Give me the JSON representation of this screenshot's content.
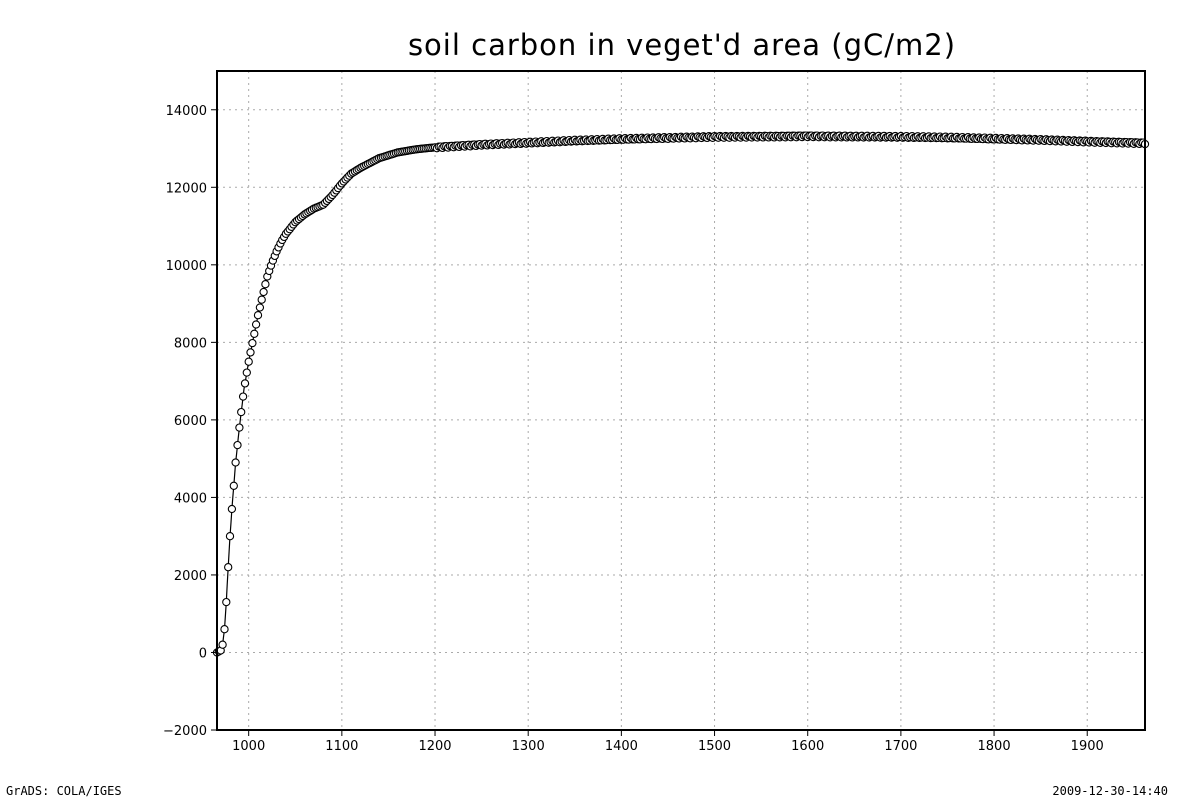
{
  "footer": {
    "left": "GrADS: COLA/IGES",
    "right": "2009-12-30-14:40"
  },
  "chart_data": {
    "type": "line",
    "title": "soil carbon in veget'd area (gC/m2)",
    "xlabel": "",
    "ylabel": "",
    "xlim": [
      966,
      1962
    ],
    "ylim": [
      -2000,
      15000
    ],
    "xticks": [
      1000,
      1100,
      1200,
      1300,
      1400,
      1500,
      1600,
      1700,
      1800,
      1900
    ],
    "yticks": [
      -2000,
      0,
      2000,
      4000,
      6000,
      8000,
      10000,
      12000,
      14000
    ],
    "grid": true,
    "marker": "open-circle",
    "series_anchors": {
      "x": [
        966,
        970,
        972,
        974,
        976,
        978,
        980,
        982,
        984,
        986,
        990,
        995,
        1000,
        1005,
        1010,
        1015,
        1020,
        1025,
        1030,
        1035,
        1040,
        1050,
        1060,
        1070,
        1080,
        1090,
        1100,
        1110,
        1120,
        1140,
        1160,
        1180,
        1200,
        1250,
        1300,
        1350,
        1400,
        1450,
        1500,
        1550,
        1600,
        1650,
        1700,
        1750,
        1800,
        1850,
        1900,
        1962
      ],
      "values": [
        0,
        50,
        200,
        600,
        1300,
        2200,
        3000,
        3700,
        4300,
        4900,
        5800,
        6800,
        7500,
        8100,
        8700,
        9200,
        9700,
        10050,
        10350,
        10600,
        10800,
        11100,
        11300,
        11450,
        11550,
        11800,
        12100,
        12350,
        12500,
        12750,
        12900,
        12980,
        13030,
        13100,
        13150,
        13200,
        13240,
        13270,
        13300,
        13310,
        13320,
        13310,
        13300,
        13280,
        13250,
        13220,
        13180,
        13140
      ]
    }
  }
}
